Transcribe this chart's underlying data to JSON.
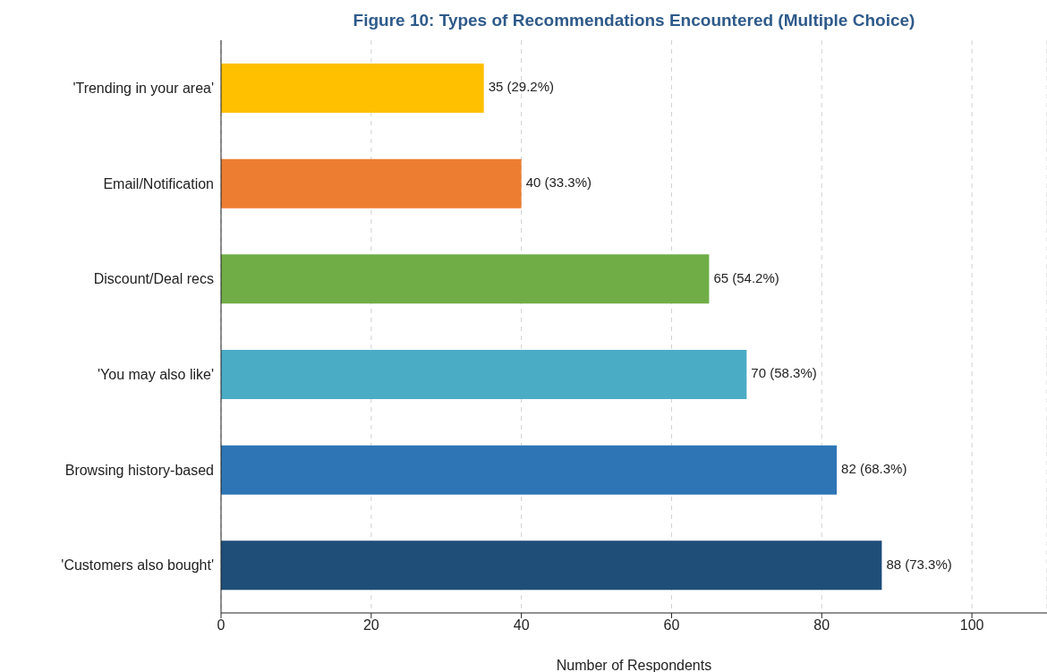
{
  "chart_data": {
    "type": "bar",
    "orientation": "horizontal",
    "title": "Figure 10: Types of Recommendations Encountered (Multiple Choice)",
    "xlabel": "Number of Respondents",
    "categories": [
      "'Trending in your area'",
      "Email/Notification",
      "Discount/Deal recs",
      "'You may also like'",
      "Browsing history-based",
      "'Customers also bought'"
    ],
    "values": [
      35,
      40,
      65,
      70,
      82,
      88
    ],
    "colors": [
      "#ffc000",
      "#ed7d31",
      "#70ad47",
      "#4bacc6",
      "#2e75b6",
      "#1f4e79"
    ],
    "value_labels": [
      "35 (29.2%)",
      "40 (33.3%)",
      "65 (54.2%)",
      "70 (58.3%)",
      "82 (68.3%)",
      "88 (73.3%)"
    ],
    "xlim": [
      0,
      110
    ],
    "xticks": [
      0,
      20,
      40,
      60,
      80,
      100
    ],
    "grid": "x"
  }
}
